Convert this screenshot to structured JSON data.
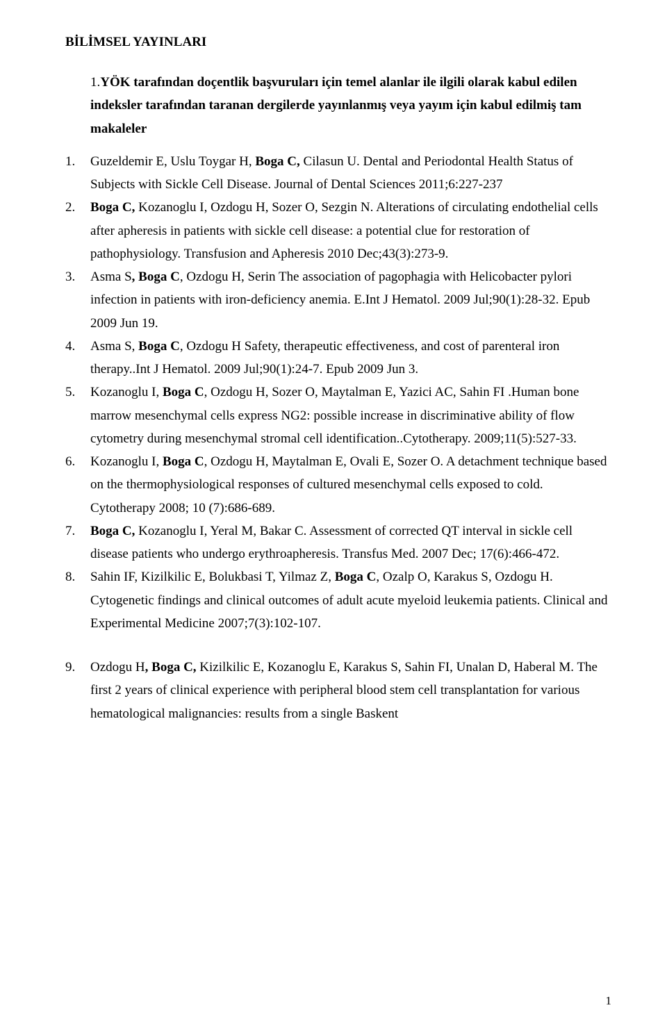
{
  "document": {
    "title": "BİLİMSEL YAYINLARI",
    "intro": {
      "number": "1.",
      "boldPart": "YÖK tarafından doçentlik başvuruları için temel alanlar ile ilgili olarak kabul edilen indeksler tarafından taranan dergilerde yayınlanmış veya yayım için kabul edilmiş tam makaleler"
    },
    "references": [
      {
        "parts": [
          {
            "text": "Guzeldemir E, Uslu Toygar H, ",
            "bold": false
          },
          {
            "text": "Boga C,",
            "bold": true
          },
          {
            "text": " Cilasun U. Dental and Periodontal Health Status of Subjects with Sickle Cell Disease. Journal of Dental Sciences 2011;6:227-237",
            "bold": false
          }
        ]
      },
      {
        "parts": [
          {
            "text": "Boga C,",
            "bold": true
          },
          {
            "text": " Kozanoglu I, Ozdogu H, Sozer O, Sezgin N. Alterations of circulating endothelial cells after apheresis in patients with sickle cell disease: a potential clue for restoration of pathophysiology. Transfusion and Apheresis 2010 Dec;43(3):273-9.",
            "bold": false
          }
        ]
      },
      {
        "parts": [
          {
            "text": "Asma S",
            "bold": false
          },
          {
            "text": ", Boga C",
            "bold": true
          },
          {
            "text": ", Ozdogu H, Serin The association of pagophagia with Helicobacter pylori infection in patients with iron-deficiency anemia. E.Int J Hematol. 2009 Jul;90(1):28-32. Epub 2009 Jun 19.",
            "bold": false
          }
        ]
      },
      {
        "parts": [
          {
            "text": "Asma S, ",
            "bold": false
          },
          {
            "text": "Boga C",
            "bold": true
          },
          {
            "text": ", Ozdogu H Safety, therapeutic effectiveness, and cost of parenteral iron therapy..Int J Hematol. 2009 Jul;90(1):24-7. Epub 2009 Jun 3.",
            "bold": false
          }
        ]
      },
      {
        "parts": [
          {
            "text": "Kozanoglu I, ",
            "bold": false
          },
          {
            "text": "Boga C",
            "bold": true
          },
          {
            "text": ", Ozdogu H, Sozer O, Maytalman E, Yazici AC, Sahin FI .Human bone marrow mesenchymal cells express NG2: possible increase in discriminative ability of flow cytometry during mesenchymal stromal cell identification..Cytotherapy. 2009;11(5):527-33.",
            "bold": false
          }
        ]
      },
      {
        "parts": [
          {
            "text": "Kozanoglu I, ",
            "bold": false
          },
          {
            "text": "Boga C",
            "bold": true
          },
          {
            "text": ", Ozdogu H, Maytalman E, Ovali E, Sozer O. A detachment technique based on the thermophysiological responses of cultured mesenchymal cells exposed to cold. Cytotherapy 2008; 10 (7):686-689.",
            "bold": false
          }
        ]
      },
      {
        "parts": [
          {
            "text": "Boga C,",
            "bold": true
          },
          {
            "text": " Kozanoglu I, Yeral M, Bakar C. Assessment of corrected QT interval in sickle cell disease patients who undergo erythroapheresis. Transfus Med. 2007 Dec; 17(6):466-472.",
            "bold": false
          }
        ]
      },
      {
        "parts": [
          {
            "text": "Sahin IF, Kizilkilic E, Bolukbasi T, Yilmaz Z, ",
            "bold": false
          },
          {
            "text": "Boga C",
            "bold": true
          },
          {
            "text": ", Ozalp O, Karakus S, Ozdogu H. Cytogenetic findings and clinical outcomes of adult acute myeloid leukemia patients. Clinical and Experimental Medicine 2007;7(3):102-107.",
            "bold": false
          }
        ]
      }
    ],
    "separateRef": {
      "number": "9.",
      "parts": [
        {
          "text": "Ozdogu H",
          "bold": false
        },
        {
          "text": ", Boga C, ",
          "bold": true
        },
        {
          "text": "Kizilkilic E, Kozanoglu E, Karakus S, Sahin FI, Unalan D, Haberal M. The first 2 years of clinical experience with peripheral blood stem cell transplantation for various hematological malignancies: results from a single Baskent",
          "bold": false
        }
      ]
    },
    "pageNumber": "1"
  }
}
